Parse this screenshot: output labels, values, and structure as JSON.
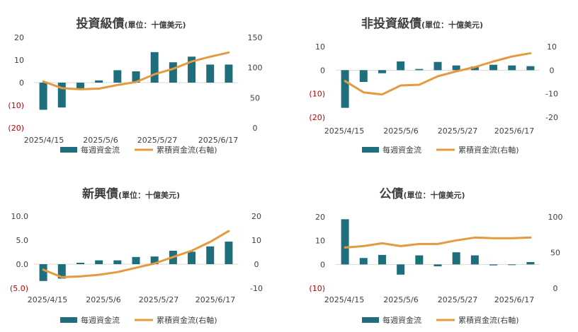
{
  "colors": {
    "bar": "#1f6e7e",
    "line": "#e49a3f",
    "negative_tick": "#c00000",
    "text": "#404040"
  },
  "legend": {
    "bar_label": "每週資金流",
    "line_label": "累積資金流(右軸)"
  },
  "chart_data": [
    {
      "type": "bar+line",
      "title": "投資級債",
      "title_unit": "(單位：十億美元)",
      "x_tick_labels": [
        "2025/4/15",
        "2025/5/6",
        "2025/5/27",
        "2025/6/17"
      ],
      "y_left": {
        "ticks": [
          "20",
          "10",
          "0",
          "(10)",
          "(20)"
        ],
        "values": [
          20,
          10,
          0,
          -10,
          -20
        ],
        "range": [
          -20,
          20
        ]
      },
      "y_right": {
        "ticks": [
          "150",
          "100",
          "50",
          "0"
        ],
        "values": [
          150,
          100,
          50,
          0
        ],
        "range": [
          0,
          150
        ]
      },
      "series": [
        {
          "kind": "bar",
          "values": [
            -12,
            -11,
            -2.5,
            1,
            5.5,
            5,
            13.5,
            9,
            11.5,
            8,
            8
          ]
        },
        {
          "kind": "line",
          "values": [
            77,
            66,
            64,
            65,
            71,
            76,
            89,
            98,
            110,
            118,
            125
          ]
        }
      ]
    },
    {
      "type": "bar+line",
      "title": "非投資級債",
      "title_unit": "(單位：十億美元)",
      "x_tick_labels": [
        "2025/4/15",
        "2025/5/6",
        "2025/5/27",
        "2025/6/17"
      ],
      "y_left": {
        "ticks": [
          "10",
          "0",
          "(10)",
          "(20)"
        ],
        "values": [
          10,
          0,
          -10,
          -20
        ],
        "range": [
          -20,
          10
        ]
      },
      "y_right": {
        "ticks": [
          "10",
          "0",
          "-10",
          "-20"
        ],
        "values": [
          10,
          0,
          -10,
          -20
        ],
        "range": [
          -20,
          10
        ]
      },
      "series": [
        {
          "kind": "bar",
          "values": [
            -16,
            -5,
            -1.3,
            3.7,
            0.5,
            3.5,
            2,
            1.6,
            2.3,
            2,
            1.7
          ]
        },
        {
          "kind": "line",
          "values": [
            -4.6,
            -9.4,
            -10.3,
            -6.5,
            -6.2,
            -2.6,
            -0.5,
            1.3,
            3.7,
            5.8,
            7.2
          ]
        }
      ]
    },
    {
      "type": "bar+line",
      "title": "新興債",
      "title_unit": "(單位：十億美元)",
      "x_tick_labels": [
        "2025/4/15",
        "2025/5/6",
        "2025/5/27",
        "2025/6/17"
      ],
      "y_left": {
        "ticks": [
          "10.0",
          "5.0",
          "0.0",
          "(5.0)"
        ],
        "values": [
          10,
          5,
          0,
          -5
        ],
        "range": [
          -5,
          10
        ]
      },
      "y_right": {
        "ticks": [
          "20",
          "10",
          "0",
          "-10"
        ],
        "values": [
          20,
          10,
          0,
          -10
        ],
        "range": [
          -10,
          20
        ]
      },
      "series": [
        {
          "kind": "bar",
          "values": [
            -3.5,
            -3,
            0.3,
            0.8,
            0.8,
            1.5,
            1.6,
            2.8,
            2.6,
            3.7,
            4.7
          ]
        },
        {
          "kind": "line",
          "values": [
            -2.3,
            -5.4,
            -5.1,
            -4.4,
            -3.3,
            -1.5,
            0.3,
            3,
            5.6,
            9.3,
            13.8
          ]
        }
      ]
    },
    {
      "type": "bar+line",
      "title": "公債",
      "title_unit": "(單位：十億美元)",
      "x_tick_labels": [
        "2025/4/15",
        "2025/5/6",
        "2025/5/27",
        "2025/6/17"
      ],
      "y_left": {
        "ticks": [
          "20",
          "10",
          "0",
          "(10)"
        ],
        "values": [
          20,
          10,
          0,
          -10
        ],
        "range": [
          -10,
          20
        ]
      },
      "y_right": {
        "ticks": [
          "100",
          "50",
          "0"
        ],
        "values": [
          100,
          50,
          0
        ],
        "range": [
          0,
          100
        ]
      },
      "series": [
        {
          "kind": "bar",
          "values": [
            19,
            2.7,
            4,
            -4.3,
            3.8,
            -0.8,
            5.1,
            3.8,
            -0.4,
            -0.3,
            1
          ]
        },
        {
          "kind": "line",
          "values": [
            57,
            59,
            63,
            59,
            62,
            62,
            67,
            71,
            70,
            70,
            71
          ]
        }
      ]
    }
  ]
}
